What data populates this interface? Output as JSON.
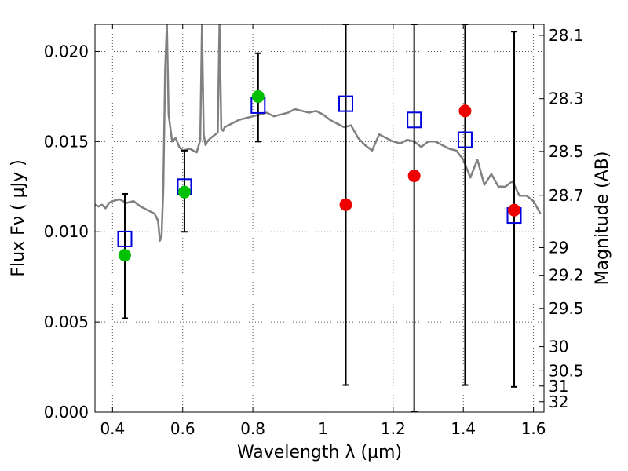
{
  "chart_data": {
    "type": "scatter",
    "title": "",
    "xlabel": "Wavelength  λ (μm)",
    "ylabel": "Flux  Fν  ( μJy )",
    "y2label": "Magnitude (AB)",
    "xlim": [
      0.35,
      1.63
    ],
    "ylim": [
      0.0,
      0.0215
    ],
    "grid": true,
    "x_ticks": [
      0.4,
      0.6,
      0.8,
      1.0,
      1.2,
      1.4,
      1.6
    ],
    "x_tick_labels": [
      "0.4",
      "0.6",
      "0.8",
      "1",
      "1.2",
      "1.4",
      "1.6"
    ],
    "y_ticks": [
      0.0,
      0.005,
      0.01,
      0.015,
      0.02
    ],
    "y_tick_labels": [
      "0.000",
      "0.005",
      "0.010",
      "0.015",
      "0.020"
    ],
    "magnitude_ticks": [
      {
        "label": "28.1",
        "mag": 28.1
      },
      {
        "label": "28.3",
        "mag": 28.3
      },
      {
        "label": "28.5",
        "mag": 28.5
      },
      {
        "label": "28.7",
        "mag": 28.7
      },
      {
        "label": "29",
        "mag": 29.0
      },
      {
        "label": "29.2",
        "mag": 29.2
      },
      {
        "label": "29.5",
        "mag": 29.5
      },
      {
        "label": "30",
        "mag": 30.0
      },
      {
        "label": "30.5",
        "mag": 30.5
      },
      {
        "label": "31",
        "mag": 31.0
      },
      {
        "label": "32",
        "mag": 32.0
      }
    ],
    "colors": {
      "model": "#808080",
      "green": "#00c000",
      "red": "#ee0000",
      "squares": "#0000dd",
      "errorbars": "#000000",
      "grid": "#555555"
    },
    "series": [
      {
        "kind": "line",
        "x": [
          0.35,
          0.36,
          0.37,
          0.38,
          0.39,
          0.4,
          0.42,
          0.44,
          0.46,
          0.48,
          0.5,
          0.52,
          0.53,
          0.535,
          0.54,
          0.545,
          0.55,
          0.555,
          0.56,
          0.57,
          0.58,
          0.59,
          0.6,
          0.62,
          0.64,
          0.65,
          0.655,
          0.66,
          0.665,
          0.67,
          0.68,
          0.7,
          0.705,
          0.71,
          0.715,
          0.72,
          0.74,
          0.76,
          0.78,
          0.8,
          0.82,
          0.84,
          0.86,
          0.88,
          0.9,
          0.92,
          0.94,
          0.96,
          0.98,
          1.0,
          1.02,
          1.04,
          1.06,
          1.08,
          1.1,
          1.12,
          1.14,
          1.16,
          1.18,
          1.2,
          1.22,
          1.24,
          1.26,
          1.28,
          1.3,
          1.32,
          1.34,
          1.36,
          1.38,
          1.4,
          1.42,
          1.44,
          1.46,
          1.48,
          1.5,
          1.52,
          1.54,
          1.56,
          1.58,
          1.6,
          1.62
        ],
        "values": [
          0.0115,
          0.0114,
          0.0115,
          0.0113,
          0.0116,
          0.0117,
          0.0118,
          0.0116,
          0.0117,
          0.0114,
          0.0112,
          0.011,
          0.0106,
          0.0095,
          0.0098,
          0.0125,
          0.019,
          0.0215,
          0.0165,
          0.015,
          0.0152,
          0.0147,
          0.0145,
          0.0146,
          0.0144,
          0.0151,
          0.0215,
          0.0154,
          0.0148,
          0.015,
          0.0152,
          0.0155,
          0.0215,
          0.0157,
          0.0156,
          0.0158,
          0.016,
          0.0162,
          0.0163,
          0.0164,
          0.0165,
          0.0166,
          0.0164,
          0.0165,
          0.0166,
          0.0168,
          0.0167,
          0.0166,
          0.0167,
          0.0165,
          0.0162,
          0.016,
          0.0158,
          0.0159,
          0.0152,
          0.0148,
          0.0145,
          0.0154,
          0.0152,
          0.015,
          0.0149,
          0.0151,
          0.015,
          0.0147,
          0.015,
          0.015,
          0.0148,
          0.0146,
          0.0145,
          0.014,
          0.013,
          0.014,
          0.0126,
          0.0132,
          0.0125,
          0.0125,
          0.0128,
          0.012,
          0.012,
          0.0117,
          0.011
        ]
      },
      {
        "kind": "errorbar",
        "x": [
          0.435,
          0.605,
          0.815,
          1.065,
          1.26,
          1.405,
          1.545
        ],
        "low": [
          0.0052,
          0.01,
          0.015,
          0.0015,
          0.0,
          0.0015,
          0.0014
        ],
        "high": [
          0.0121,
          0.0145,
          0.0199,
          0.0215,
          0.0215,
          0.0215,
          0.0211
        ]
      },
      {
        "kind": "marker-square",
        "x": [
          0.435,
          0.605,
          0.815,
          1.065,
          1.26,
          1.405,
          1.545
        ],
        "values": [
          0.0096,
          0.0125,
          0.017,
          0.0171,
          0.0162,
          0.0151,
          0.0109
        ]
      },
      {
        "kind": "marker-circle-green",
        "x": [
          0.435,
          0.605,
          0.815
        ],
        "values": [
          0.0087,
          0.0122,
          0.0175
        ]
      },
      {
        "kind": "marker-circle-red",
        "x": [
          1.065,
          1.26,
          1.405,
          1.545
        ],
        "values": [
          0.0115,
          0.0131,
          0.0167,
          0.0112
        ]
      }
    ]
  }
}
